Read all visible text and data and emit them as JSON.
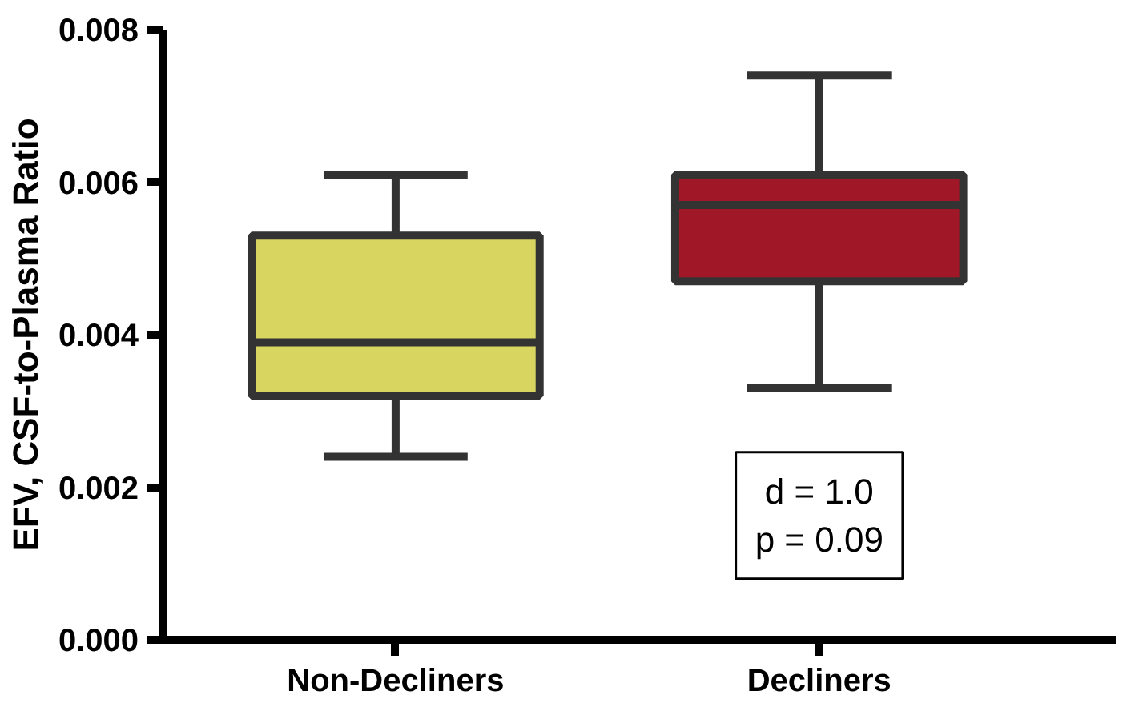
{
  "chart_data": {
    "type": "box",
    "ylabel": "EFV, CSF-to-Plasma Ratio",
    "categories": [
      "Non-Decliners",
      "Decliners"
    ],
    "colors": [
      "#d8d660",
      "#a01828"
    ],
    "boxes": [
      {
        "low": 0.0024,
        "q1": 0.0032,
        "median": 0.0039,
        "q3": 0.0053,
        "high": 0.0061
      },
      {
        "low": 0.0033,
        "q1": 0.0047,
        "median": 0.0057,
        "q3": 0.0061,
        "high": 0.0074
      }
    ],
    "ylim": [
      0,
      0.008
    ],
    "yticks": [
      {
        "value": 0,
        "label": "0.000"
      },
      {
        "value": 0.002,
        "label": "0.002"
      },
      {
        "value": 0.004,
        "label": "0.004"
      },
      {
        "value": 0.006,
        "label": "0.006"
      },
      {
        "value": 0.008,
        "label": "0.008"
      }
    ],
    "annotations": [
      "d = 1.0",
      "p = 0.09"
    ],
    "grid": false
  }
}
